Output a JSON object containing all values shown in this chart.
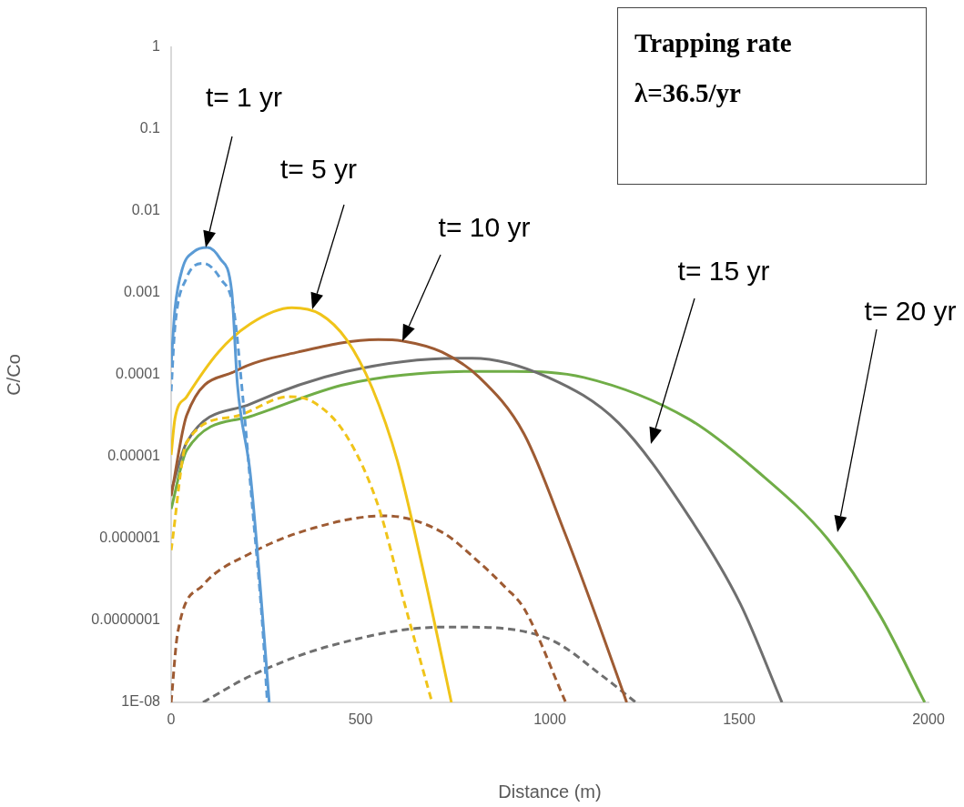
{
  "chart_data": {
    "type": "line",
    "xlabel": "Distance (m)",
    "ylabel": "C/Co",
    "log": "y",
    "grid": false,
    "legend": false,
    "xlim": [
      0,
      2000
    ],
    "xticks": [
      0,
      500,
      1000,
      1500,
      2000
    ],
    "ylim": [
      1e-08,
      1
    ],
    "yticks": [
      1,
      0.1,
      0.01,
      0.001,
      0.0001,
      {
        "value": 1e-05,
        "label": "0.00001"
      },
      {
        "value": 1e-06,
        "label": "0.000001"
      },
      {
        "value": 1e-07,
        "label": "0.0000001"
      },
      {
        "value": 1e-08,
        "label": "1E-08"
      }
    ],
    "series": [
      {
        "color": "#5b9bd5",
        "x": [
          0,
          10,
          30,
          60,
          96,
          130,
          160,
          175,
          209,
          235,
          259
        ],
        "values": [
          0.00013,
          0.00063,
          0.002,
          0.0032,
          0.0036,
          0.0026,
          0.00105,
          7.7e-05,
          6.2e-06,
          2.7e-07,
          1e-08
        ]
      },
      {
        "color": "#5b9bd5",
        "line_style": "dashed",
        "x": [
          0,
          10,
          40,
          85,
          130,
          165,
          190,
          215,
          240,
          254
        ],
        "values": [
          6.3e-05,
          0.00038,
          0.0015,
          0.0023,
          0.0015,
          0.00063,
          4.9e-05,
          2.3e-06,
          1.05e-07,
          1e-08
        ]
      },
      {
        "color": "#f0c419",
        "x": [
          0,
          10,
          41,
          125,
          209,
          319,
          394,
          463,
          531,
          598,
          665,
          740
        ],
        "values": [
          1.05e-05,
          2.9e-05,
          5.4e-05,
          0.00019,
          0.00042,
          0.00066,
          0.00055,
          0.00027,
          6.9e-05,
          8.7e-06,
          4.2e-07,
          1e-08
        ]
      },
      {
        "color": "#f0c419",
        "line_style": "dashed",
        "x": [
          0,
          41,
          168,
          310,
          377,
          463,
          547,
          615,
          689
        ],
        "values": [
          7.2e-07,
          1.5e-05,
          3.1e-05,
          5.4e-05,
          4.6e-05,
          1.8e-05,
          2.5e-06,
          1.7e-07,
          1e-08
        ]
      },
      {
        "color": "#9e5b33",
        "x": [
          0,
          41,
          168,
          336,
          547,
          610,
          715,
          814,
          932,
          1042,
          1126,
          1203
        ],
        "values": [
          3.3e-06,
          3.2e-05,
          0.00011,
          0.00019,
          0.00027,
          0.00026,
          0.00019,
          9.3e-05,
          1.9e-05,
          1.1e-06,
          1e-07,
          1e-08
        ]
      },
      {
        "color": "#9e5b33",
        "line_style": "dashed",
        "x": [
          0,
          17,
          84,
          209,
          377,
          564,
          715,
          814,
          884,
          932,
          1042
        ],
        "values": [
          1e-08,
          6.9e-08,
          2.7e-07,
          6.6e-07,
          1.35e-06,
          1.9e-06,
          1.2e-06,
          5.1e-07,
          2.5e-07,
          1.4e-07,
          1e-08
        ]
      },
      {
        "color": "#6f6f6f",
        "x": [
          0,
          41,
          209,
          463,
          756,
          795,
          996,
          1181,
          1366,
          1503,
          1613
        ],
        "values": [
          3.8e-06,
          1.5e-05,
          4.4e-05,
          0.00011,
          0.00016,
          0.00016,
          9.3e-05,
          2.6e-05,
          1.9e-06,
          1.6e-07,
          1e-08
        ]
      },
      {
        "color": "#6f6f6f",
        "line_style": "dashed",
        "x": [
          84,
          209,
          420,
          715,
          766,
          996,
          1145,
          1227
        ],
        "values": [
          1e-08,
          2.1e-08,
          4.9e-08,
          8.3e-08,
          8.3e-08,
          6e-08,
          2e-08,
          1e-08
        ]
      },
      {
        "color": "#70ad47",
        "x": [
          0,
          41,
          209,
          463,
          800,
          905,
          1090,
          1366,
          1549,
          1733,
          1870,
          1990
        ],
        "values": [
          2.3e-06,
          1.2e-05,
          3.1e-05,
          7.7e-05,
          0.00011,
          0.00011,
          9.3e-05,
          2.9e-05,
          6.6e-06,
          1e-06,
          1.2e-07,
          1e-08
        ]
      }
    ],
    "annotations": [
      "t= 1 yr",
      "t= 5 yr",
      "t= 10 yr",
      "t= 15 yr",
      "t= 20 yr",
      "Trapping rate",
      "λ=36.5/yr"
    ]
  }
}
